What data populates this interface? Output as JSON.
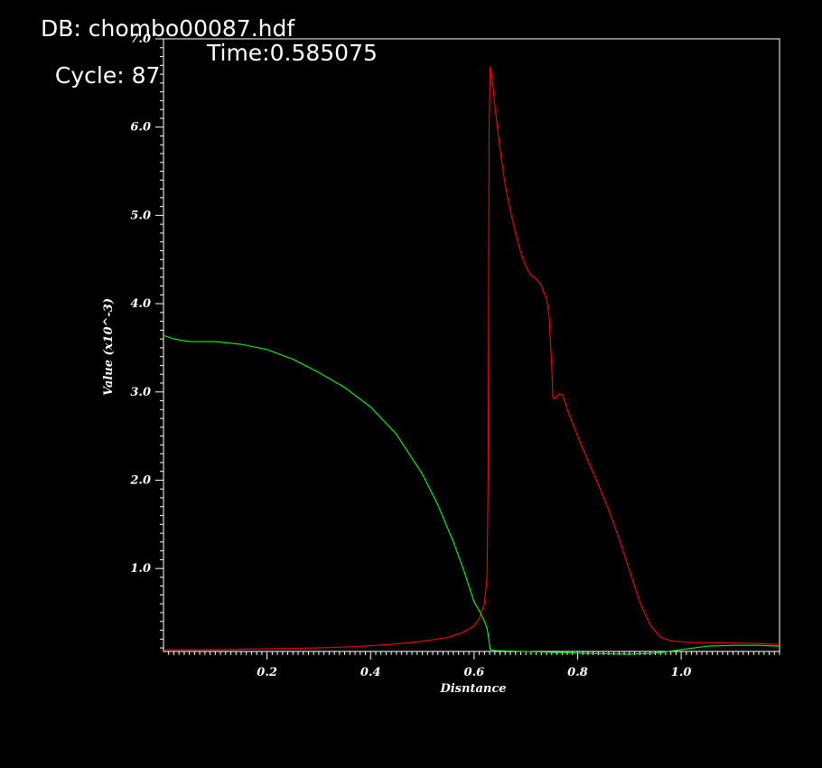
{
  "header": {
    "db_label": "DB: chombo00087.hdf",
    "cycle_label": "Cycle: 87",
    "time_label": "Time:0.585075"
  },
  "chart_data": {
    "type": "line",
    "xlabel": "Disntance",
    "ylabel": "Value (x10^-3)",
    "xlim": [
      0.0,
      1.19
    ],
    "ylim": [
      0.06,
      7.0
    ],
    "x_ticks": [
      0.2,
      0.4,
      0.6,
      0.8,
      1.0
    ],
    "x_tick_labels": [
      "0.2",
      "0.4",
      "0.6",
      "0.8",
      "1.0"
    ],
    "y_ticks": [
      1.0,
      2.0,
      3.0,
      4.0,
      5.0,
      6.0,
      7.0
    ],
    "y_tick_labels": [
      "1.0",
      "2.0",
      "3.0",
      "4.0",
      "5.0",
      "6.0",
      "7.0"
    ],
    "grid": false,
    "legend": "none",
    "colors": {
      "background": "#000000",
      "axes": "#ffffff",
      "red_series": "#ff0000",
      "green_series": "#00ff00"
    },
    "series": [
      {
        "color": "#ff0000",
        "x": [
          0.0,
          0.05,
          0.1,
          0.15,
          0.2,
          0.25,
          0.3,
          0.35,
          0.4,
          0.45,
          0.5,
          0.55,
          0.58,
          0.6,
          0.61,
          0.62,
          0.625,
          0.627,
          0.628,
          0.629,
          0.631,
          0.635,
          0.64,
          0.65,
          0.66,
          0.67,
          0.68,
          0.69,
          0.7,
          0.71,
          0.72,
          0.73,
          0.74,
          0.745,
          0.75,
          0.752,
          0.755,
          0.76,
          0.765,
          0.77,
          0.775,
          0.78,
          0.8,
          0.82,
          0.84,
          0.86,
          0.88,
          0.9,
          0.92,
          0.94,
          0.96,
          0.98,
          1.0,
          1.02,
          1.05,
          1.1,
          1.15,
          1.19
        ],
        "y": [
          0.08,
          0.08,
          0.08,
          0.085,
          0.09,
          0.095,
          0.1,
          0.11,
          0.125,
          0.145,
          0.175,
          0.22,
          0.28,
          0.35,
          0.43,
          0.6,
          0.9,
          2.0,
          4.0,
          6.0,
          6.68,
          6.55,
          6.25,
          5.75,
          5.35,
          5.05,
          4.8,
          4.58,
          4.42,
          4.32,
          4.28,
          4.2,
          4.05,
          3.85,
          3.3,
          2.94,
          2.92,
          2.95,
          2.98,
          2.97,
          2.9,
          2.8,
          2.5,
          2.22,
          1.95,
          1.66,
          1.34,
          0.98,
          0.62,
          0.36,
          0.22,
          0.18,
          0.17,
          0.16,
          0.16,
          0.155,
          0.15,
          0.14
        ]
      },
      {
        "color": "#00ff00",
        "x": [
          0.0,
          0.02,
          0.05,
          0.1,
          0.15,
          0.2,
          0.25,
          0.3,
          0.35,
          0.4,
          0.45,
          0.5,
          0.53,
          0.56,
          0.58,
          0.6,
          0.61,
          0.62,
          0.625,
          0.628,
          0.631,
          0.64,
          0.7,
          0.8,
          0.9,
          0.95,
          1.0,
          1.05,
          1.1,
          1.15,
          1.19
        ],
        "y": [
          3.64,
          3.6,
          3.57,
          3.57,
          3.54,
          3.48,
          3.37,
          3.22,
          3.05,
          2.83,
          2.52,
          2.07,
          1.72,
          1.3,
          0.98,
          0.62,
          0.52,
          0.4,
          0.32,
          0.22,
          0.08,
          0.07,
          0.06,
          0.04,
          0.03,
          0.04,
          0.08,
          0.12,
          0.13,
          0.13,
          0.12
        ]
      }
    ]
  }
}
